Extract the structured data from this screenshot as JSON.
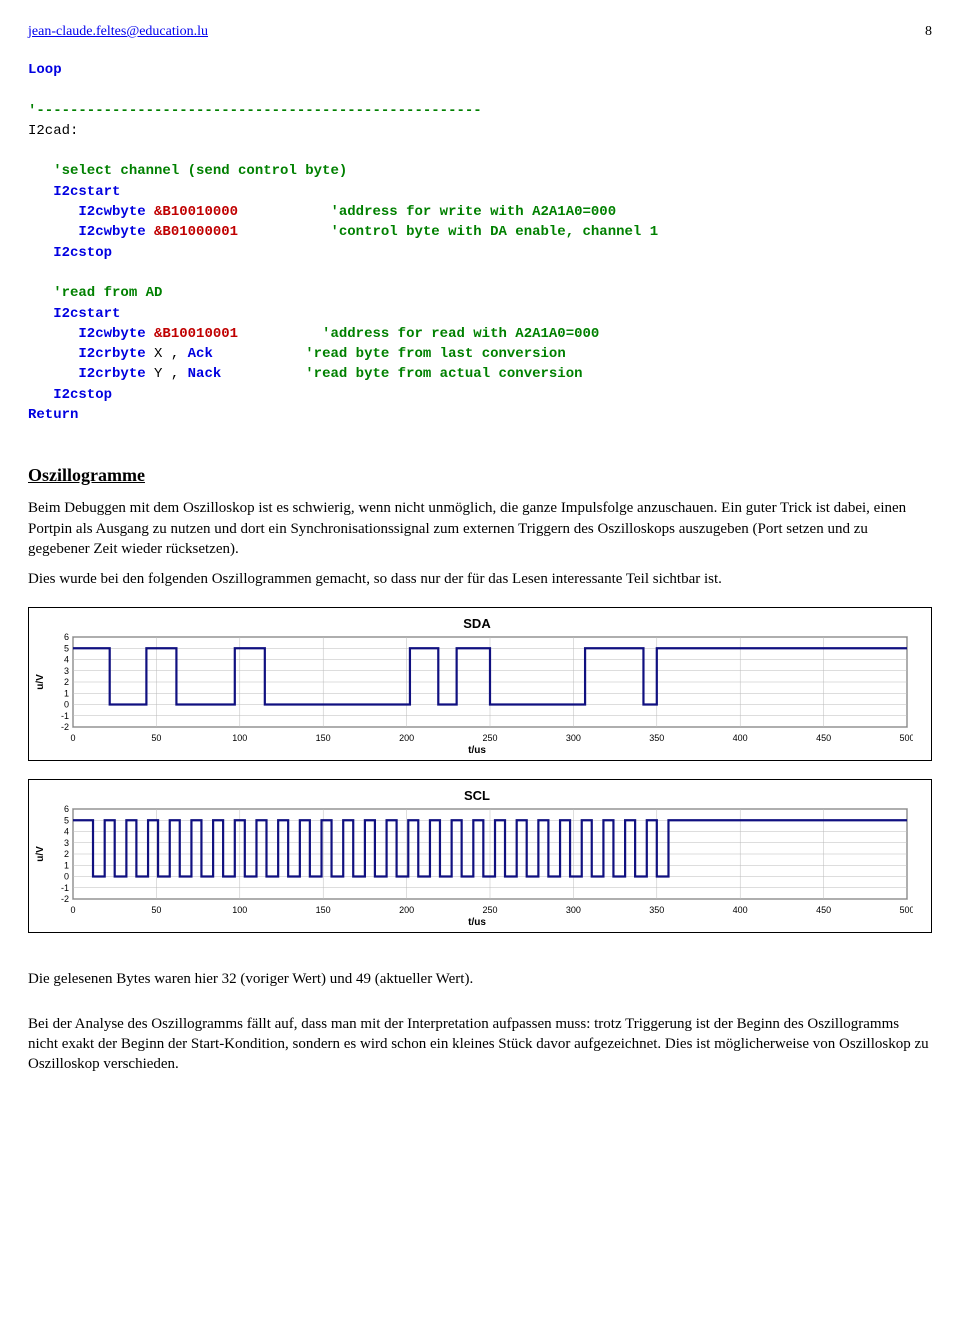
{
  "header": {
    "email": "jean-claude.feltes@education.lu",
    "page": "8"
  },
  "code": {
    "l1": "Loop",
    "sep": "'-----------------------------------------------------",
    "l2": "I2cad:",
    "l3": "   'select channel (send control byte)",
    "l4a": "   I2cstart",
    "l5a": "      I2cwbyte ",
    "l5b": "&B10010000",
    "l5c": "           'address for write with A2A1A0=000",
    "l6a": "      I2cwbyte ",
    "l6b": "&B01000001",
    "l6c": "           'control byte with DA enable, channel 1",
    "l7a": "   I2cstop",
    "l8": "   'read from AD",
    "l9a": "   I2cstart",
    "l10a": "      I2cwbyte ",
    "l10b": "&B10010001",
    "l10c": "          'address for read with A2A1A0=000",
    "l11a": "      I2crbyte ",
    "l11b": "X , ",
    "l11c": "Ack",
    "l11d": "           'read byte from last conversion",
    "l12a": "      I2crbyte ",
    "l12b": "Y , ",
    "l12c": "Nack",
    "l12d": "          'read byte from actual conversion",
    "l13a": "   I2cstop",
    "l14": "Return"
  },
  "section": {
    "title": "Oszillogramme",
    "p1": "Beim Debuggen mit dem Oszilloskop ist es schwierig, wenn nicht unmöglich, die ganze Impulsfolge anzuschauen. Ein guter Trick ist dabei, einen Portpin als Ausgang zu nutzen und dort ein Synchronisationssignal zum externen Triggern des Oszilloskops auszugeben (Port setzen und zu gegebener Zeit wieder rücksetzen).",
    "p2": "Dies wurde bei den folgenden Oszillogrammen gemacht, so dass nur der für das Lesen interessante Teil sichtbar ist."
  },
  "charts": {
    "sda": {
      "title": "SDA",
      "ylabel": "u/V",
      "xlabel": "t/us",
      "xlim": [
        0,
        500
      ],
      "xtick_step": 50,
      "ylim": [
        -2,
        6
      ],
      "yticks": [
        -2,
        -1,
        0,
        1,
        2,
        3,
        4,
        5,
        6
      ],
      "grid_color": "#bbb",
      "line_color": "#101080",
      "background": "#ffffff",
      "high": 5.0,
      "low": 0.0,
      "transitions": [
        [
          0,
          5
        ],
        [
          20,
          5
        ],
        [
          22,
          0
        ],
        [
          42,
          0
        ],
        [
          44,
          5
        ],
        [
          60,
          5
        ],
        [
          62,
          0
        ],
        [
          95,
          0
        ],
        [
          97,
          5
        ],
        [
          113,
          5
        ],
        [
          115,
          0
        ],
        [
          200,
          0
        ],
        [
          202,
          5
        ],
        [
          217,
          5
        ],
        [
          219,
          0
        ],
        [
          228,
          0
        ],
        [
          230,
          5
        ],
        [
          248,
          5
        ],
        [
          250,
          0
        ],
        [
          305,
          0
        ],
        [
          307,
          5
        ],
        [
          320,
          5
        ],
        [
          322,
          5
        ],
        [
          340,
          5
        ],
        [
          342,
          0
        ],
        [
          348,
          0
        ],
        [
          350,
          5
        ],
        [
          357,
          5
        ],
        [
          359,
          5
        ],
        [
          500,
          5
        ]
      ]
    },
    "scl": {
      "title": "SCL",
      "ylabel": "u/V",
      "xlabel": "t/us",
      "xlim": [
        0,
        500
      ],
      "xtick_step": 50,
      "ylim": [
        -2,
        6
      ],
      "yticks": [
        -2,
        -1,
        0,
        1,
        2,
        3,
        4,
        5,
        6
      ],
      "grid_color": "#bbb",
      "line_color": "#101080",
      "background": "#ffffff",
      "high": 5.0,
      "low": 0.0,
      "clock": {
        "start": 12,
        "period": 13,
        "duty_low": 7,
        "count": 27,
        "rest_high_from": 363
      }
    }
  },
  "footer": {
    "p1": "Die gelesenen Bytes waren hier 32 (voriger Wert) und 49 (aktueller Wert).",
    "p2": "Bei der Analyse des Oszillogramms fällt auf, dass man mit der Interpretation aufpassen muss: trotz Triggerung ist der Beginn des Oszillogramms nicht exakt der Beginn der Start-Kondition, sondern es wird schon ein kleines Stück davor aufgezeichnet. Dies ist möglicherweise von Oszilloskop zu Oszilloskop verschieden."
  }
}
